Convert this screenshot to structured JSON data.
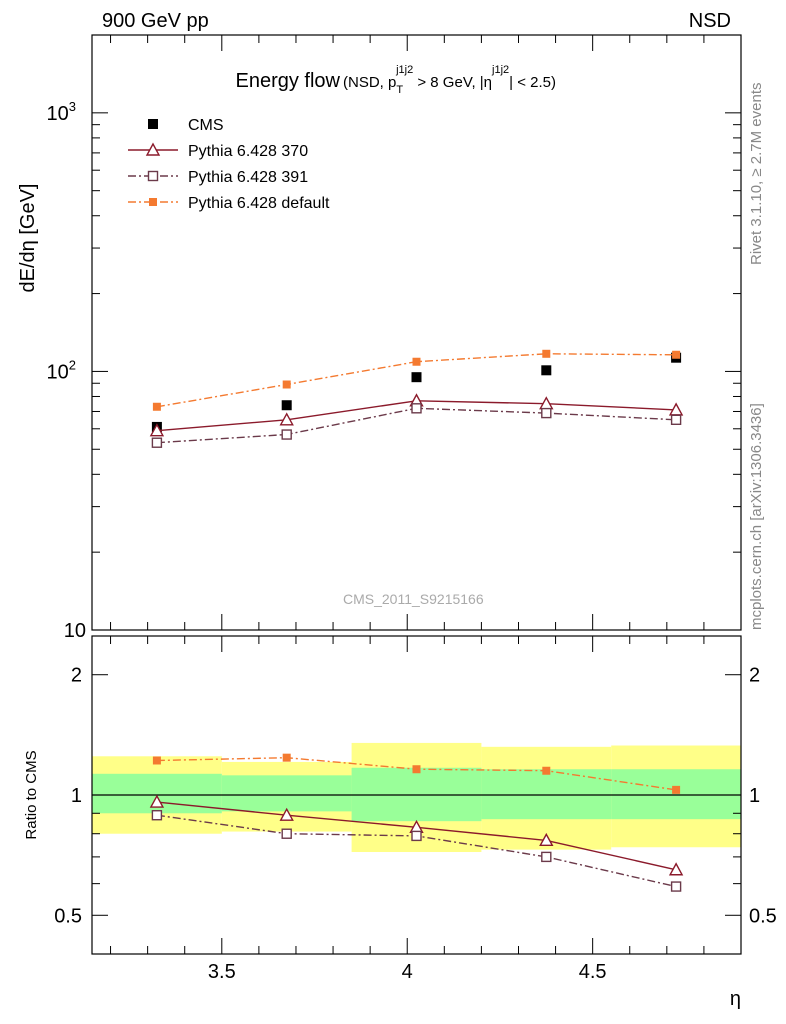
{
  "header": {
    "left": "900 GeV pp",
    "right": "NSD"
  },
  "side_text": {
    "rivet": "Rivet 3.1.10, ≥ 2.7M events",
    "mcplots": "mcplots.cern.ch [arXiv:1306.3436]"
  },
  "watermark": "CMS_2011_S9215166",
  "colors": {
    "data": "#000000",
    "p370": "#8b1a2b",
    "p391": "#6b3a4a",
    "pdef": "#f47a30",
    "band_outer": "#ffff88",
    "band_inner": "#99ff99"
  },
  "chart_data": [
    {
      "type": "scatter",
      "title": "Energy flow",
      "title_suffix_parts": [
        "(NSD, p",
        "T",
        "j1j2",
        " > 8 GeV, |η",
        "j1j2",
        "| < 2.5)"
      ],
      "ylabel": "dE/dη [GeV]",
      "yscale": "log",
      "ylim": [
        10,
        2000
      ],
      "xlim": [
        3.15,
        4.9
      ],
      "ytick_labels": [
        "10",
        "10",
        "10"
      ],
      "ytick_exponents": [
        "",
        "2",
        "3"
      ],
      "legend_position": "top-left",
      "x": [
        3.325,
        3.675,
        4.025,
        4.375,
        4.725
      ],
      "series": [
        {
          "name": "CMS",
          "values": [
            61,
            74,
            95,
            101,
            113
          ],
          "style": "data"
        },
        {
          "name": "Pythia 6.428 370",
          "values": [
            59,
            65,
            77,
            75,
            71
          ],
          "style": "p370"
        },
        {
          "name": "Pythia 6.428 391",
          "values": [
            53,
            57,
            72,
            69,
            65
          ],
          "style": "p391"
        },
        {
          "name": "Pythia 6.428 default",
          "values": [
            73,
            89,
            109,
            117,
            116
          ],
          "style": "pdef"
        }
      ]
    },
    {
      "type": "line",
      "ylabel": "Ratio to CMS",
      "xlabel": "η",
      "yscale": "log",
      "ylim": [
        0.4,
        2.5
      ],
      "xlim": [
        3.15,
        4.9
      ],
      "xtick_labels": [
        "3.5",
        "4",
        "4.5"
      ],
      "ytick_labels": [
        "0.5",
        "1",
        "2"
      ],
      "bins": [
        {
          "lo": 3.15,
          "hi": 3.5,
          "outer": [
            0.8,
            1.25
          ],
          "inner": [
            0.9,
            1.13
          ]
        },
        {
          "lo": 3.5,
          "hi": 3.85,
          "outer": [
            0.81,
            1.21
          ],
          "inner": [
            0.91,
            1.12
          ]
        },
        {
          "lo": 3.85,
          "hi": 4.2,
          "outer": [
            0.72,
            1.35
          ],
          "inner": [
            0.86,
            1.17
          ]
        },
        {
          "lo": 4.2,
          "hi": 4.55,
          "outer": [
            0.73,
            1.32
          ],
          "inner": [
            0.87,
            1.16
          ]
        },
        {
          "lo": 4.55,
          "hi": 4.9,
          "outer": [
            0.74,
            1.33
          ],
          "inner": [
            0.87,
            1.16
          ]
        }
      ],
      "x": [
        3.325,
        3.675,
        4.025,
        4.375,
        4.725
      ],
      "series": [
        {
          "name": "Pythia 6.428 370",
          "values": [
            0.96,
            0.89,
            0.83,
            0.77,
            0.65
          ],
          "style": "p370"
        },
        {
          "name": "Pythia 6.428 391",
          "values": [
            0.89,
            0.8,
            0.79,
            0.7,
            0.59
          ],
          "style": "p391"
        },
        {
          "name": "Pythia 6.428 default",
          "values": [
            1.22,
            1.24,
            1.16,
            1.15,
            1.03
          ],
          "style": "pdef"
        }
      ]
    }
  ]
}
